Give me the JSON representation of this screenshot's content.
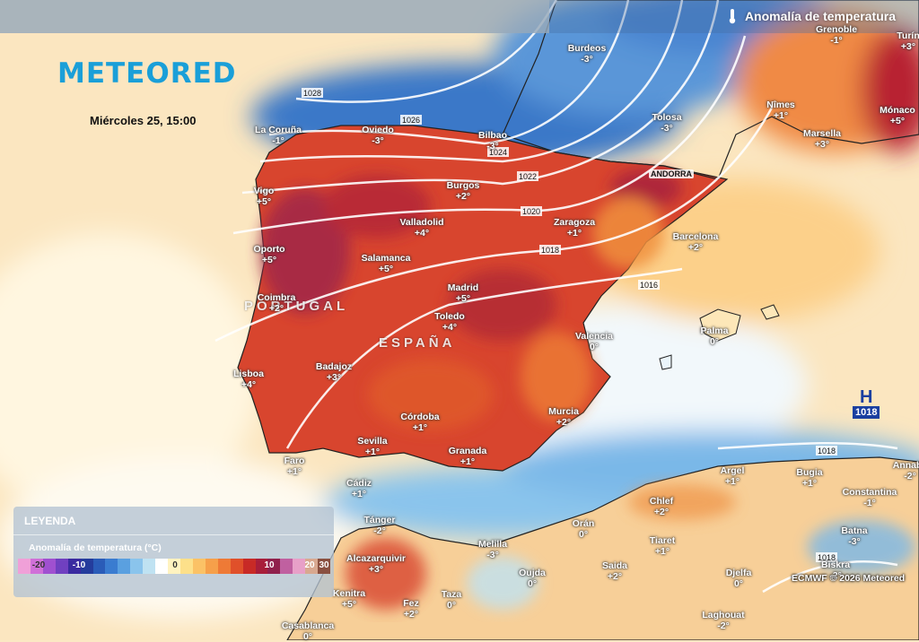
{
  "header": {
    "title": "Anomalía de temperatura",
    "icon": "thermometer-icon"
  },
  "brand": {
    "logo": "METEORED",
    "color": "#1a9fd8"
  },
  "date": "Miércoles 25, 15:00",
  "cities": {
    "la_coruna": {
      "name": "La Coruña",
      "value": "-1°"
    },
    "oviedo": {
      "name": "Oviedo",
      "value": "-3°"
    },
    "bilbao": {
      "name": "Bilbao",
      "value": "-3°"
    },
    "burdeos": {
      "name": "Burdeos",
      "value": "-3°"
    },
    "grenoble": {
      "name": "Grenoble",
      "value": "-1°"
    },
    "turin": {
      "name": "Turín",
      "value": "+3°"
    },
    "nimes": {
      "name": "Nîmes",
      "value": "+1°"
    },
    "monaco": {
      "name": "Mónaco",
      "value": "+5°"
    },
    "marsella": {
      "name": "Marsella",
      "value": "+3°"
    },
    "tolosa": {
      "name": "Tolosa",
      "value": "-3°"
    },
    "vigo": {
      "name": "Vigo",
      "value": "+5°"
    },
    "burgos": {
      "name": "Burgos",
      "value": "+2°"
    },
    "valladolid": {
      "name": "Valladolid",
      "value": "+4°"
    },
    "zaragoza": {
      "name": "Zaragoza",
      "value": "+1°"
    },
    "barcelona": {
      "name": "Barcelona",
      "value": "+2°"
    },
    "oporto": {
      "name": "Oporto",
      "value": "+5°"
    },
    "salamanca": {
      "name": "Salamanca",
      "value": "+5°"
    },
    "madrid": {
      "name": "Madrid",
      "value": "+5°"
    },
    "coimbra": {
      "name": "Coimbra",
      "value": "+2°"
    },
    "toledo": {
      "name": "Toledo",
      "value": "+4°"
    },
    "valencia": {
      "name": "Valencia",
      "value": "0°"
    },
    "palma": {
      "name": "Palma",
      "value": "0°"
    },
    "lisboa": {
      "name": "Lisboa",
      "value": "+4°"
    },
    "badajoz": {
      "name": "Badajoz",
      "value": "+3°"
    },
    "murcia": {
      "name": "Murcia",
      "value": "+2°"
    },
    "cordoba": {
      "name": "Córdoba",
      "value": "+1°"
    },
    "sevilla": {
      "name": "Sevilla",
      "value": "+1°"
    },
    "granada": {
      "name": "Granada",
      "value": "+1°"
    },
    "faro": {
      "name": "Faro",
      "value": "+1°"
    },
    "cadiz": {
      "name": "Cádiz",
      "value": "+1°"
    },
    "argel": {
      "name": "Argel",
      "value": "+1°"
    },
    "bugia": {
      "name": "Bugia",
      "value": "+1°"
    },
    "annaba": {
      "name": "Annaba",
      "value": "-2°"
    },
    "constantina": {
      "name": "Constantina",
      "value": "-1°"
    },
    "chlef": {
      "name": "Chlef",
      "value": "+2°"
    },
    "oran": {
      "name": "Orán",
      "value": "0°"
    },
    "tanger": {
      "name": "Tánger",
      "value": "-2°"
    },
    "melilla": {
      "name": "Melilla",
      "value": "-3°"
    },
    "tiaret": {
      "name": "Tiaret",
      "value": "+1°"
    },
    "batna": {
      "name": "Batna",
      "value": "-3°"
    },
    "alcazarquivir": {
      "name": "Alcazarquivir",
      "value": "+3°"
    },
    "oujda": {
      "name": "Oujda",
      "value": "0°"
    },
    "saida": {
      "name": "Saida",
      "value": "+2°"
    },
    "djelfa": {
      "name": "Djelfa",
      "value": "0°"
    },
    "biskra": {
      "name": "Biskra",
      "value": "-2°"
    },
    "kenitra": {
      "name": "Kenitra",
      "value": "+5°"
    },
    "fez": {
      "name": "Fez",
      "value": "+2°"
    },
    "taza": {
      "name": "Taza",
      "value": "0°"
    },
    "laghouat": {
      "name": "Laghouat",
      "value": "-2°"
    },
    "casablanca": {
      "name": "Casablanca",
      "value": "0°"
    }
  },
  "countries": {
    "portugal": "PORTUGAL",
    "espana": "ESPAÑA",
    "andorra": "ANDORRA"
  },
  "isobars": [
    "1028",
    "1026",
    "1024",
    "1022",
    "1020",
    "1018",
    "1016",
    "1018",
    "1018"
  ],
  "pressure_center": {
    "symbol": "H",
    "value": "1018"
  },
  "legend": {
    "title": "LEYENDA",
    "subtitle": "Anomalía de temperatura (°C)",
    "ticks": [
      "-20",
      "-10",
      "0",
      "10",
      "20",
      "30"
    ],
    "colors": [
      "#f0a0d8",
      "#d070d8",
      "#a050d0",
      "#7040c0",
      "#3a2aa0",
      "#243c9c",
      "#2a5cb8",
      "#3a7cd0",
      "#5aa0e0",
      "#8ac4ec",
      "#bfe2f2",
      "#ffffff",
      "#fff3c0",
      "#fde08a",
      "#fbc266",
      "#f6a04a",
      "#ee7a36",
      "#e0502a",
      "#c82a26",
      "#a81e3a",
      "#90204c",
      "#c060a0",
      "#e8a0c8",
      "#d8a890",
      "#8a5040"
    ]
  },
  "credit": "ECMWF © 2026 Meteored"
}
